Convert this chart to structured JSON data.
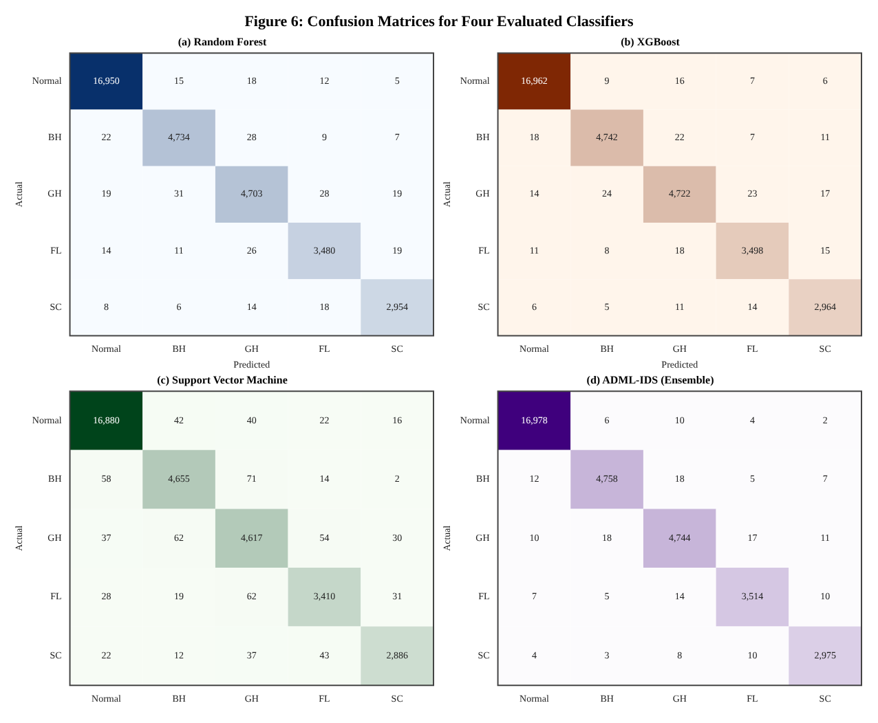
{
  "chart_data": [
    {
      "type": "heatmap",
      "title": "(a) Random Forest",
      "annotations": [
        "Figure 6: Confusion Matrices for Four Evaluated Classifiers"
      ],
      "xlabel": "Predicted",
      "ylabel": "Actual",
      "categories": [
        "Normal",
        "BH",
        "GH",
        "FL",
        "SC"
      ],
      "y_categories": [
        "Normal",
        "BH",
        "GH",
        "FL",
        "SC"
      ],
      "colors": [
        "#f7fbff",
        "#08306b"
      ],
      "cells": [
        [
          16950,
          15,
          18,
          12,
          5
        ],
        [
          22,
          4734,
          28,
          9,
          7
        ],
        [
          19,
          31,
          4703,
          28,
          19
        ],
        [
          14,
          11,
          26,
          3480,
          19
        ],
        [
          8,
          6,
          14,
          18,
          2954
        ]
      ],
      "cell_labels": [
        [
          "16,950",
          "15",
          "18",
          "12",
          "5"
        ],
        [
          "22",
          "4,734",
          "28",
          "9",
          "7"
        ],
        [
          "19",
          "31",
          "4,703",
          "28",
          "19"
        ],
        [
          "14",
          "11",
          "26",
          "3,480",
          "19"
        ],
        [
          "8",
          "6",
          "14",
          "18",
          "2,954"
        ]
      ]
    },
    {
      "type": "heatmap",
      "title": "(b) XGBoost",
      "xlabel": "Predicted",
      "ylabel": "Actual",
      "categories": [
        "Normal",
        "BH",
        "GH",
        "FL",
        "SC"
      ],
      "y_categories": [
        "Normal",
        "BH",
        "GH",
        "FL",
        "SC"
      ],
      "colors": [
        "#fff5eb",
        "#7f2704"
      ],
      "cells": [
        [
          16962,
          9,
          16,
          7,
          6
        ],
        [
          18,
          4742,
          22,
          7,
          11
        ],
        [
          14,
          24,
          4722,
          23,
          17
        ],
        [
          11,
          8,
          18,
          3498,
          15
        ],
        [
          6,
          5,
          11,
          14,
          2964
        ]
      ],
      "cell_labels": [
        [
          "16,962",
          "9",
          "16",
          "7",
          "6"
        ],
        [
          "18",
          "4,742",
          "22",
          "7",
          "11"
        ],
        [
          "14",
          "24",
          "4,722",
          "23",
          "17"
        ],
        [
          "11",
          "8",
          "18",
          "3,498",
          "15"
        ],
        [
          "6",
          "5",
          "11",
          "14",
          "2,964"
        ]
      ]
    },
    {
      "type": "heatmap",
      "title": "(c) Support Vector Machine",
      "ylabel": "Actual",
      "categories": [
        "Normal",
        "BH",
        "GH",
        "FL",
        "SC"
      ],
      "y_categories": [
        "Normal",
        "BH",
        "GH",
        "FL",
        "SC"
      ],
      "colors": [
        "#f7fcf5",
        "#00441b"
      ],
      "cells": [
        [
          16880,
          42,
          40,
          22,
          16
        ],
        [
          58,
          4655,
          71,
          14,
          2
        ],
        [
          37,
          62,
          4617,
          54,
          30
        ],
        [
          28,
          19,
          62,
          3410,
          31
        ],
        [
          22,
          12,
          37,
          43,
          2886
        ]
      ],
      "cell_labels": [
        [
          "16,880",
          "42",
          "40",
          "22",
          "16"
        ],
        [
          "58",
          "4,655",
          "71",
          "14",
          "2"
        ],
        [
          "37",
          "62",
          "4,617",
          "54",
          "30"
        ],
        [
          "28",
          "19",
          "62",
          "3,410",
          "31"
        ],
        [
          "22",
          "12",
          "37",
          "43",
          "2,886"
        ]
      ]
    },
    {
      "type": "heatmap",
      "title": "(d) ADML-IDS (Ensemble)",
      "ylabel": "Actual",
      "categories": [
        "Normal",
        "BH",
        "GH",
        "FL",
        "SC"
      ],
      "y_categories": [
        "Normal",
        "BH",
        "GH",
        "FL",
        "SC"
      ],
      "colors": [
        "#fcfbfd",
        "#3f007d"
      ],
      "cells": [
        [
          16978,
          6,
          10,
          4,
          2
        ],
        [
          12,
          4758,
          18,
          5,
          7
        ],
        [
          10,
          18,
          4744,
          17,
          11
        ],
        [
          7,
          5,
          14,
          3514,
          10
        ],
        [
          4,
          3,
          8,
          10,
          2975
        ]
      ],
      "cell_labels": [
        [
          "16,978",
          "6",
          "10",
          "4",
          "2"
        ],
        [
          "12",
          "4,758",
          "18",
          "5",
          "7"
        ],
        [
          "10",
          "18",
          "4,744",
          "17",
          "11"
        ],
        [
          "7",
          "5",
          "14",
          "3,514",
          "10"
        ],
        [
          "4",
          "3",
          "8",
          "10",
          "2,975"
        ]
      ]
    }
  ]
}
